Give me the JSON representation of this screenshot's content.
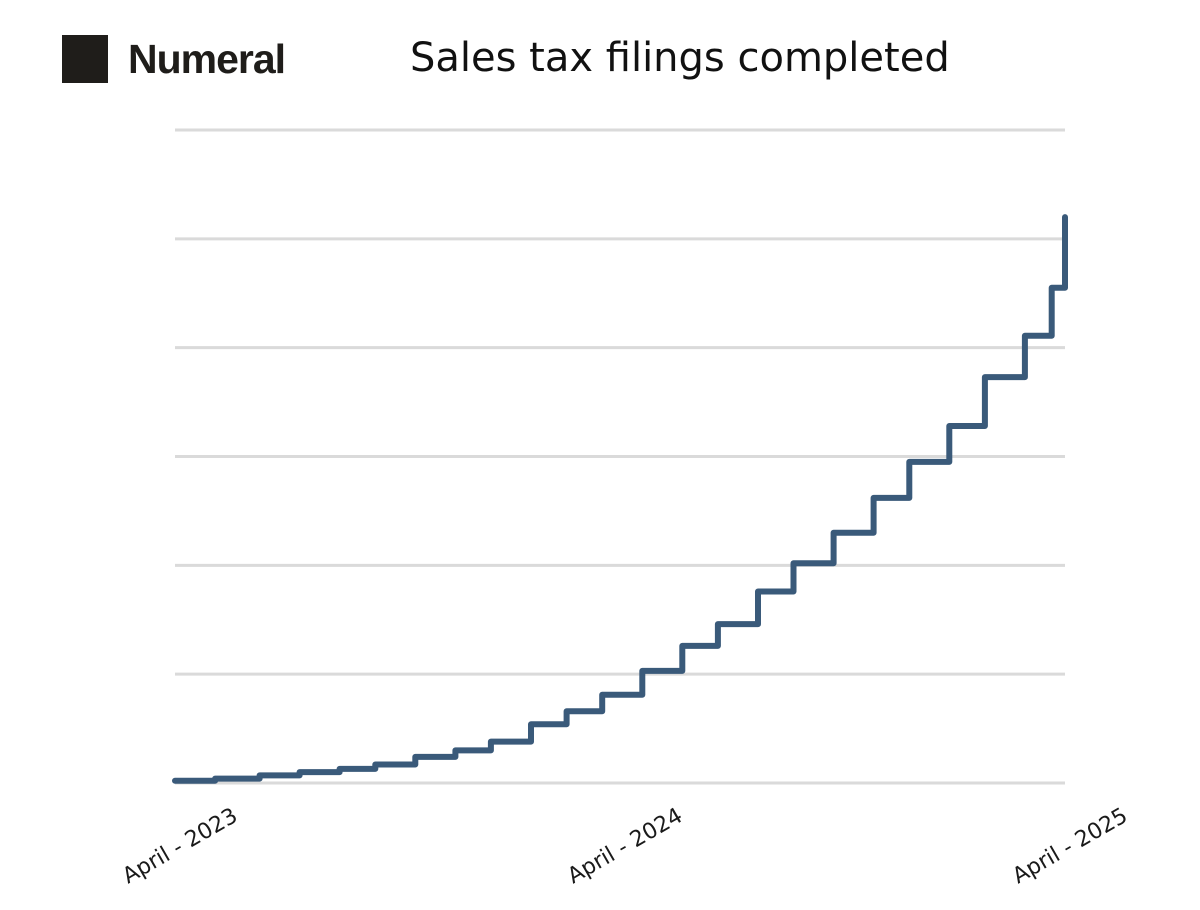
{
  "brand": {
    "name": "Numeral",
    "logo_icon": "numeral-logo-icon",
    "color": "#1f1d1a"
  },
  "chart_data": {
    "type": "line",
    "step": true,
    "title": "Sales tax filings completed",
    "xlabel": "",
    "ylabel": "",
    "x_tick_labels": [
      "April - 2023",
      "April - 2024",
      "April - 2025"
    ],
    "y_tick_labels_visible": false,
    "ylim": [
      0,
      6
    ],
    "grid": true,
    "gridline_count": 7,
    "legend": "none",
    "line_color": "#3a5a7a",
    "grid_color": "#dadada",
    "series": [
      {
        "x": [
          0,
          0.045,
          0.095,
          0.14,
          0.185,
          0.225,
          0.27,
          0.315,
          0.355,
          0.4,
          0.44,
          0.48,
          0.525,
          0.57,
          0.61,
          0.655,
          0.695,
          0.74,
          0.785,
          0.825,
          0.87,
          0.91,
          0.955,
          0.985,
          1.0
        ],
        "y": [
          0.02,
          0.04,
          0.07,
          0.1,
          0.13,
          0.17,
          0.24,
          0.3,
          0.38,
          0.54,
          0.66,
          0.81,
          1.03,
          1.26,
          1.46,
          1.76,
          2.02,
          2.3,
          2.62,
          2.95,
          3.28,
          3.73,
          4.11,
          4.55,
          5.2
        ]
      }
    ]
  }
}
